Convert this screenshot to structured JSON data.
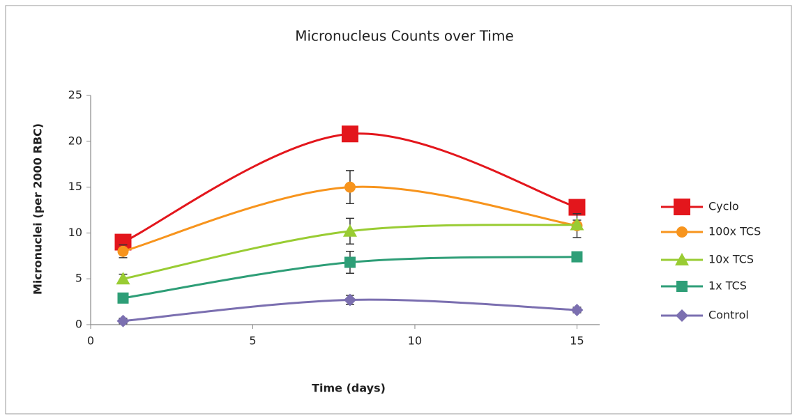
{
  "chart_data": {
    "type": "line",
    "title": "Micronucleus Counts over Time",
    "xlabel": "Time (days)",
    "ylabel": "Micronuclei (per 2000 RBC)",
    "x": [
      1,
      8,
      15
    ],
    "xlim": [
      0,
      15.7
    ],
    "xticks": [
      0,
      5,
      10,
      15
    ],
    "ylim": [
      0,
      25
    ],
    "yticks": [
      0,
      5,
      10,
      15,
      20,
      25
    ],
    "grid": false,
    "smooth": true,
    "legend": "right",
    "series": [
      {
        "name": "Cyclo",
        "color": "#e3161c",
        "marker": "square-large",
        "values": [
          9,
          20.8,
          12.8
        ]
      },
      {
        "name": "100x TCS",
        "color": "#f7941d",
        "marker": "circle",
        "values": [
          8,
          15,
          10.8
        ],
        "errors": [
          0.7,
          1.8,
          1.3
        ]
      },
      {
        "name": "10x TCS",
        "color": "#99cc33",
        "marker": "triangle",
        "values": [
          5,
          10.2,
          10.9
        ],
        "errors": [
          0.5,
          1.4,
          0.5
        ]
      },
      {
        "name": "1x TCS",
        "color": "#2e9e77",
        "marker": "square",
        "values": [
          2.9,
          6.8,
          7.4
        ],
        "errors": [
          0.4,
          1.2,
          0.4
        ]
      },
      {
        "name": "Control",
        "color": "#7b6fb0",
        "marker": "diamond",
        "values": [
          0.4,
          2.7,
          1.6
        ],
        "errors": [
          0.3,
          0.5,
          0.3
        ]
      }
    ]
  }
}
